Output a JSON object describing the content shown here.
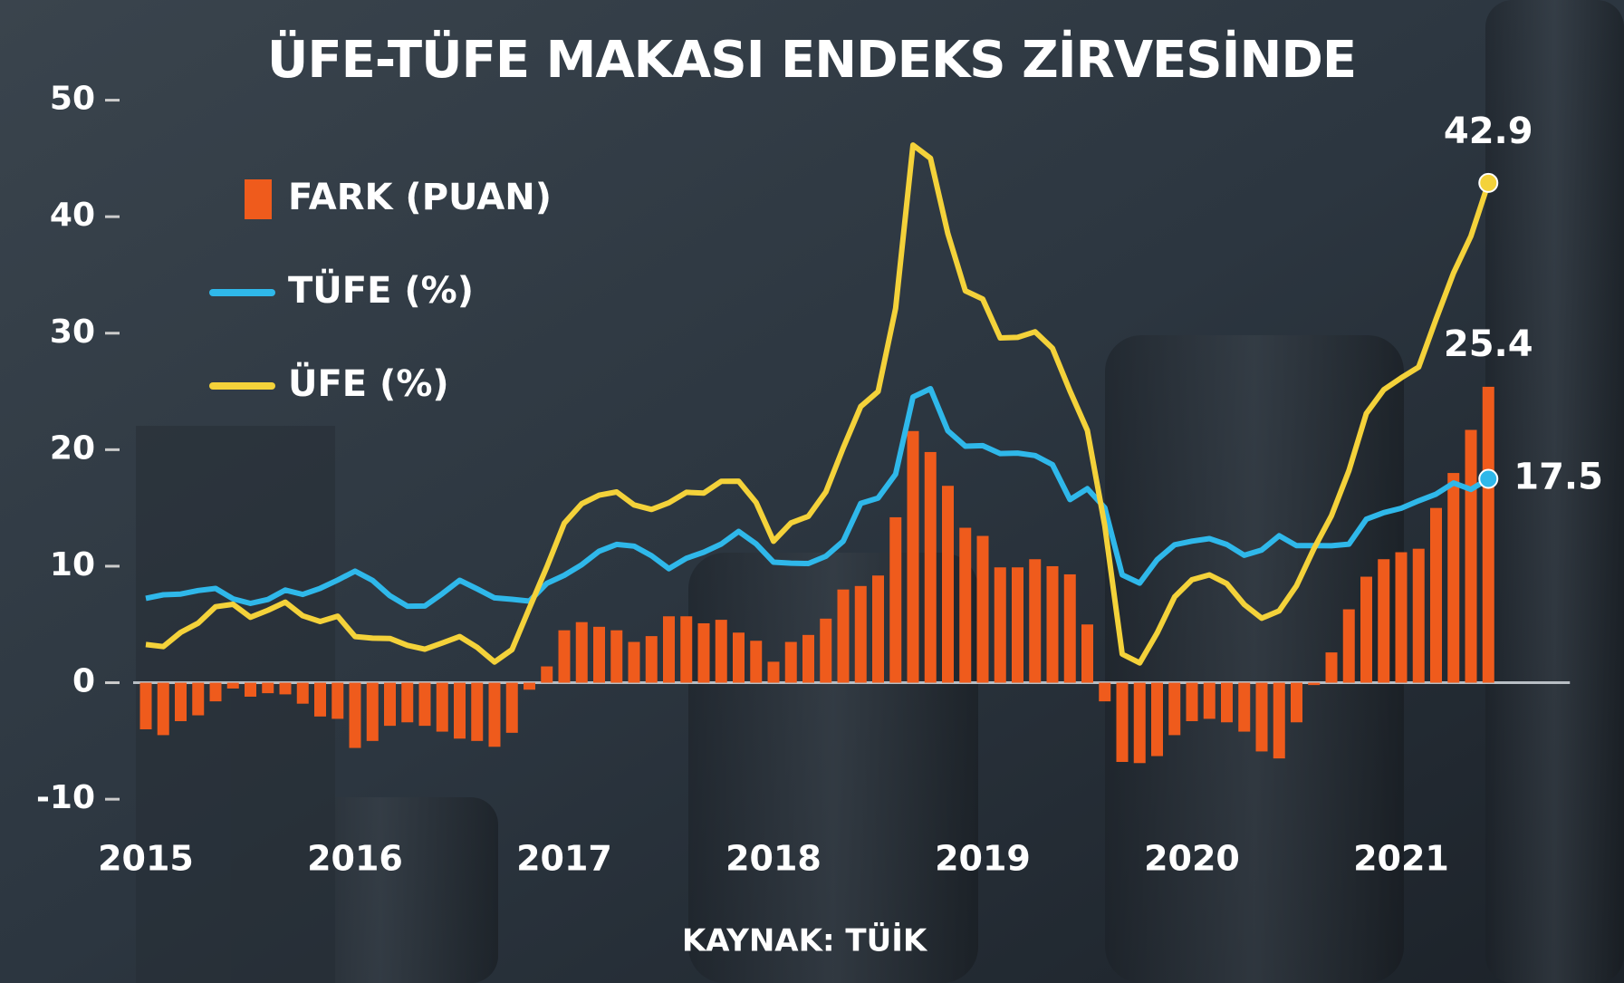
{
  "chart_data": {
    "type": "combo",
    "title": "ÜFE-TÜFE MAKASI ENDEKS ZİRVESİNDE",
    "source": "KAYNAK: TÜİK",
    "categories": [
      "2015",
      null,
      null,
      null,
      null,
      null,
      null,
      null,
      null,
      null,
      null,
      null,
      "2016",
      null,
      null,
      null,
      null,
      null,
      null,
      null,
      null,
      null,
      null,
      null,
      "2017",
      null,
      null,
      null,
      null,
      null,
      null,
      null,
      null,
      null,
      null,
      null,
      "2018",
      null,
      null,
      null,
      null,
      null,
      null,
      null,
      null,
      null,
      null,
      null,
      "2019",
      null,
      null,
      null,
      null,
      null,
      null,
      null,
      null,
      null,
      null,
      null,
      "2020",
      null,
      null,
      null,
      null,
      null,
      null,
      null,
      null,
      null,
      null,
      null,
      "2021",
      null,
      null,
      null,
      null,
      null
    ],
    "series": [
      {
        "name": "FARK (PUAN)",
        "type": "bar",
        "color": "#ef5b1c",
        "values": [
          -4.0,
          -4.5,
          -3.3,
          -2.8,
          -1.6,
          -0.5,
          -1.2,
          -0.9,
          -1.0,
          -1.8,
          -2.9,
          -3.1,
          -5.6,
          -5.0,
          -3.7,
          -3.4,
          -3.7,
          -4.2,
          -4.8,
          -5.0,
          -5.5,
          -4.3,
          -0.6,
          1.4,
          4.5,
          5.2,
          4.8,
          4.5,
          3.5,
          4.0,
          5.7,
          5.7,
          5.1,
          5.4,
          4.3,
          3.6,
          1.8,
          3.5,
          4.1,
          5.5,
          8.0,
          8.3,
          9.2,
          14.2,
          21.6,
          19.8,
          16.9,
          13.3,
          12.6,
          9.9,
          9.9,
          10.6,
          10.0,
          9.3,
          5.0,
          -1.6,
          -6.8,
          -6.9,
          -6.3,
          -4.5,
          -3.3,
          -3.1,
          -3.4,
          -4.2,
          -5.9,
          -6.5,
          -3.4,
          -0.2,
          2.6,
          6.3,
          9.1,
          10.6,
          11.2,
          11.5,
          15.0,
          18.0,
          21.7,
          25.4
        ]
      },
      {
        "name": "TÜFE (%)",
        "type": "line",
        "color": "#2fb8ea",
        "values": [
          7.24,
          7.55,
          7.61,
          7.91,
          8.09,
          7.2,
          6.81,
          7.14,
          7.95,
          7.58,
          8.1,
          8.81,
          9.58,
          8.78,
          7.46,
          6.57,
          6.58,
          7.64,
          8.79,
          8.05,
          7.28,
          7.16,
          7.0,
          8.53,
          9.22,
          10.13,
          11.29,
          11.87,
          11.72,
          10.9,
          9.79,
          10.68,
          11.2,
          11.9,
          12.98,
          11.92,
          10.35,
          10.26,
          10.23,
          10.85,
          12.15,
          15.39,
          15.85,
          17.9,
          24.52,
          25.24,
          21.62,
          20.3,
          20.35,
          19.67,
          19.71,
          19.5,
          18.71,
          15.72,
          16.65,
          15.01,
          9.26,
          8.55,
          10.56,
          11.84,
          12.15,
          12.37,
          11.86,
          10.94,
          11.39,
          12.62,
          11.76,
          11.77,
          11.75,
          11.89,
          14.03,
          14.6,
          14.97,
          15.61,
          16.19,
          17.14,
          16.59,
          17.5
        ]
      },
      {
        "name": "ÜFE (%)",
        "type": "line",
        "color": "#f4d23a",
        "values": [
          3.28,
          3.1,
          4.32,
          5.11,
          6.52,
          6.73,
          5.62,
          6.22,
          6.92,
          5.74,
          5.25,
          5.71,
          3.96,
          3.82,
          3.8,
          3.21,
          2.87,
          3.41,
          3.96,
          3.03,
          1.78,
          2.84,
          6.41,
          9.94,
          13.69,
          15.36,
          16.09,
          16.37,
          15.26,
          14.87,
          15.45,
          16.34,
          16.28,
          17.28,
          17.3,
          15.47,
          12.14,
          13.71,
          14.28,
          16.37,
          20.16,
          23.71,
          25.0,
          32.13,
          46.15,
          45.01,
          38.54,
          33.64,
          32.93,
          29.59,
          29.64,
          30.12,
          28.71,
          25.04,
          21.66,
          13.45,
          2.45,
          1.7,
          4.26,
          7.36,
          8.84,
          9.26,
          8.5,
          6.71,
          5.53,
          6.17,
          8.33,
          11.53,
          14.33,
          18.2,
          23.11,
          25.15,
          26.16,
          27.09,
          31.2,
          35.17,
          38.33,
          42.9
        ]
      }
    ],
    "data_labels": "last",
    "ylim": [
      -11,
      53
    ],
    "yticks": [
      50,
      40,
      30,
      20,
      10,
      0,
      -10
    ]
  }
}
